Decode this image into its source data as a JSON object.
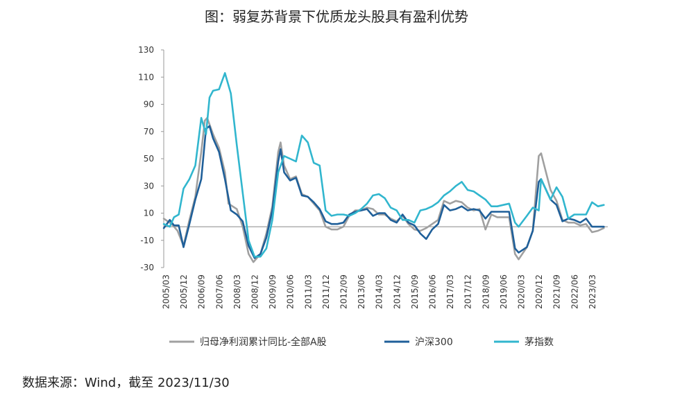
{
  "chart_data": {
    "type": "line",
    "title": "图：弱复苏背景下优质龙头股具有盈利优势",
    "ylim": [
      -30,
      130
    ],
    "yticks": [
      -30,
      -10,
      10,
      30,
      50,
      70,
      90,
      110,
      130
    ],
    "xlim": [
      2005.166,
      2023.916
    ],
    "x_tick_labels": [
      "2005/03",
      "2005/12",
      "2006/09",
      "2007/06",
      "2008/03",
      "2008/12",
      "2009/09",
      "2010/06",
      "2011/03",
      "2011/12",
      "2012/09",
      "2013/06",
      "2014/03",
      "2014/12",
      "2015/09",
      "2016/06",
      "2017/03",
      "2017/12",
      "2018/09",
      "2019/06",
      "2020/03",
      "2020/12",
      "2021/09",
      "2022/06",
      "2023/03"
    ],
    "legend_position": "bottom",
    "grid": false,
    "series": [
      {
        "name": "归母净利润累计同比-全部A股",
        "color": "#A0A0A0",
        "points": [
          [
            2005.17,
            6
          ],
          [
            2005.5,
            2
          ],
          [
            2005.75,
            -3
          ],
          [
            2006.0,
            -14
          ],
          [
            2006.25,
            5
          ],
          [
            2006.5,
            22
          ],
          [
            2006.75,
            55
          ],
          [
            2006.9,
            78
          ],
          [
            2007.0,
            80
          ],
          [
            2007.25,
            68
          ],
          [
            2007.5,
            58
          ],
          [
            2007.75,
            40
          ],
          [
            2007.9,
            17
          ],
          [
            2008.25,
            13
          ],
          [
            2008.5,
            0
          ],
          [
            2008.75,
            -20
          ],
          [
            2008.95,
            -26
          ],
          [
            2009.25,
            -20
          ],
          [
            2009.5,
            -5
          ],
          [
            2009.75,
            15
          ],
          [
            2010.0,
            55
          ],
          [
            2010.1,
            62
          ],
          [
            2010.25,
            45
          ],
          [
            2010.5,
            35
          ],
          [
            2010.75,
            37
          ],
          [
            2011.0,
            24
          ],
          [
            2011.25,
            22
          ],
          [
            2011.5,
            17
          ],
          [
            2011.75,
            12
          ],
          [
            2012.0,
            0
          ],
          [
            2012.25,
            -2
          ],
          [
            2012.5,
            -2
          ],
          [
            2012.75,
            0
          ],
          [
            2013.0,
            8
          ],
          [
            2013.25,
            12
          ],
          [
            2013.5,
            12
          ],
          [
            2013.75,
            14
          ],
          [
            2014.0,
            13
          ],
          [
            2014.25,
            9
          ],
          [
            2014.5,
            9
          ],
          [
            2014.75,
            6
          ],
          [
            2015.0,
            4
          ],
          [
            2015.25,
            8
          ],
          [
            2015.5,
            2
          ],
          [
            2015.75,
            -2
          ],
          [
            2016.0,
            -3
          ],
          [
            2016.25,
            -1
          ],
          [
            2016.5,
            2
          ],
          [
            2016.75,
            5
          ],
          [
            2017.0,
            19
          ],
          [
            2017.25,
            17
          ],
          [
            2017.5,
            19
          ],
          [
            2017.75,
            18
          ],
          [
            2018.0,
            14
          ],
          [
            2018.25,
            12
          ],
          [
            2018.5,
            13
          ],
          [
            2018.75,
            -2
          ],
          [
            2019.0,
            9
          ],
          [
            2019.25,
            7
          ],
          [
            2019.5,
            7
          ],
          [
            2019.75,
            7
          ],
          [
            2020.0,
            -20
          ],
          [
            2020.15,
            -24
          ],
          [
            2020.5,
            -15
          ],
          [
            2020.75,
            -3
          ],
          [
            2021.0,
            52
          ],
          [
            2021.1,
            54
          ],
          [
            2021.5,
            27
          ],
          [
            2021.75,
            19
          ],
          [
            2022.0,
            5
          ],
          [
            2022.25,
            3
          ],
          [
            2022.5,
            3
          ],
          [
            2022.75,
            1
          ],
          [
            2023.0,
            2
          ],
          [
            2023.25,
            -4
          ],
          [
            2023.5,
            -3
          ],
          [
            2023.75,
            -1
          ]
        ]
      },
      {
        "name": "沪深300",
        "color": "#1F5F99",
        "points": [
          [
            2005.17,
            -1
          ],
          [
            2005.42,
            5
          ],
          [
            2005.6,
            1
          ],
          [
            2005.8,
            1
          ],
          [
            2006.0,
            -15
          ],
          [
            2006.25,
            2
          ],
          [
            2006.5,
            20
          ],
          [
            2006.75,
            35
          ],
          [
            2006.95,
            72
          ],
          [
            2007.1,
            74
          ],
          [
            2007.25,
            65
          ],
          [
            2007.5,
            55
          ],
          [
            2007.75,
            35
          ],
          [
            2008.0,
            12
          ],
          [
            2008.25,
            9
          ],
          [
            2008.5,
            4
          ],
          [
            2008.75,
            -14
          ],
          [
            2009.0,
            -23
          ],
          [
            2009.25,
            -20
          ],
          [
            2009.5,
            -8
          ],
          [
            2009.75,
            12
          ],
          [
            2010.0,
            48
          ],
          [
            2010.1,
            57
          ],
          [
            2010.25,
            40
          ],
          [
            2010.5,
            34
          ],
          [
            2010.75,
            36
          ],
          [
            2011.0,
            23
          ],
          [
            2011.25,
            22
          ],
          [
            2011.5,
            18
          ],
          [
            2011.75,
            13
          ],
          [
            2012.0,
            4
          ],
          [
            2012.25,
            2
          ],
          [
            2012.5,
            2
          ],
          [
            2012.75,
            3
          ],
          [
            2013.0,
            9
          ],
          [
            2013.25,
            11
          ],
          [
            2013.5,
            12
          ],
          [
            2013.75,
            13
          ],
          [
            2014.0,
            8
          ],
          [
            2014.25,
            10
          ],
          [
            2014.5,
            10
          ],
          [
            2014.75,
            5
          ],
          [
            2015.0,
            3
          ],
          [
            2015.25,
            9
          ],
          [
            2015.5,
            3
          ],
          [
            2015.75,
            1
          ],
          [
            2016.0,
            -5
          ],
          [
            2016.25,
            -9
          ],
          [
            2016.5,
            -2
          ],
          [
            2016.75,
            2
          ],
          [
            2017.0,
            16
          ],
          [
            2017.25,
            12
          ],
          [
            2017.5,
            13
          ],
          [
            2017.75,
            15
          ],
          [
            2018.0,
            12
          ],
          [
            2018.25,
            13
          ],
          [
            2018.5,
            12
          ],
          [
            2018.75,
            6
          ],
          [
            2019.0,
            11
          ],
          [
            2019.25,
            11
          ],
          [
            2019.5,
            11
          ],
          [
            2019.75,
            11
          ],
          [
            2020.0,
            -16
          ],
          [
            2020.15,
            -19
          ],
          [
            2020.5,
            -15
          ],
          [
            2020.75,
            -3
          ],
          [
            2021.0,
            33
          ],
          [
            2021.1,
            35
          ],
          [
            2021.5,
            20
          ],
          [
            2021.75,
            16
          ],
          [
            2022.0,
            4
          ],
          [
            2022.25,
            6
          ],
          [
            2022.5,
            5
          ],
          [
            2022.75,
            3
          ],
          [
            2023.0,
            6
          ],
          [
            2023.25,
            0
          ],
          [
            2023.5,
            0
          ],
          [
            2023.75,
            0
          ]
        ]
      },
      {
        "name": "茅指数",
        "color": "#31B6CE",
        "points": [
          [
            2005.17,
            2
          ],
          [
            2005.42,
            0
          ],
          [
            2005.6,
            7
          ],
          [
            2005.8,
            9
          ],
          [
            2006.0,
            28
          ],
          [
            2006.25,
            35
          ],
          [
            2006.5,
            45
          ],
          [
            2006.75,
            80
          ],
          [
            2006.95,
            68
          ],
          [
            2007.1,
            95
          ],
          [
            2007.25,
            100
          ],
          [
            2007.5,
            101
          ],
          [
            2007.75,
            113
          ],
          [
            2008.0,
            98
          ],
          [
            2008.25,
            60
          ],
          [
            2008.5,
            25
          ],
          [
            2008.75,
            -10
          ],
          [
            2009.0,
            -22
          ],
          [
            2009.25,
            -22
          ],
          [
            2009.5,
            -16
          ],
          [
            2009.75,
            5
          ],
          [
            2010.0,
            40
          ],
          [
            2010.25,
            52
          ],
          [
            2010.5,
            50
          ],
          [
            2010.75,
            48
          ],
          [
            2011.0,
            67
          ],
          [
            2011.25,
            62
          ],
          [
            2011.5,
            47
          ],
          [
            2011.75,
            45
          ],
          [
            2012.0,
            12
          ],
          [
            2012.25,
            8
          ],
          [
            2012.5,
            9
          ],
          [
            2012.75,
            9
          ],
          [
            2013.0,
            8
          ],
          [
            2013.25,
            10
          ],
          [
            2013.5,
            13
          ],
          [
            2013.75,
            17
          ],
          [
            2014.0,
            23
          ],
          [
            2014.25,
            24
          ],
          [
            2014.5,
            21
          ],
          [
            2014.75,
            14
          ],
          [
            2015.0,
            12
          ],
          [
            2015.25,
            5
          ],
          [
            2015.5,
            5
          ],
          [
            2015.75,
            3
          ],
          [
            2016.0,
            12
          ],
          [
            2016.25,
            13
          ],
          [
            2016.5,
            15
          ],
          [
            2016.75,
            18
          ],
          [
            2017.0,
            23
          ],
          [
            2017.25,
            26
          ],
          [
            2017.5,
            30
          ],
          [
            2017.75,
            33
          ],
          [
            2018.0,
            27
          ],
          [
            2018.25,
            26
          ],
          [
            2018.5,
            23
          ],
          [
            2018.75,
            20
          ],
          [
            2019.0,
            15
          ],
          [
            2019.25,
            15
          ],
          [
            2019.5,
            16
          ],
          [
            2019.75,
            17
          ],
          [
            2020.0,
            3
          ],
          [
            2020.15,
            0
          ],
          [
            2020.5,
            8
          ],
          [
            2020.75,
            14
          ],
          [
            2021.0,
            12
          ],
          [
            2021.1,
            35
          ],
          [
            2021.5,
            20
          ],
          [
            2021.75,
            29
          ],
          [
            2022.0,
            22
          ],
          [
            2022.25,
            6
          ],
          [
            2022.5,
            9
          ],
          [
            2022.75,
            9
          ],
          [
            2023.0,
            9
          ],
          [
            2023.25,
            18
          ],
          [
            2023.5,
            15
          ],
          [
            2023.75,
            16
          ]
        ]
      }
    ]
  },
  "source": "数据来源：Wind，截至 2023/11/30"
}
